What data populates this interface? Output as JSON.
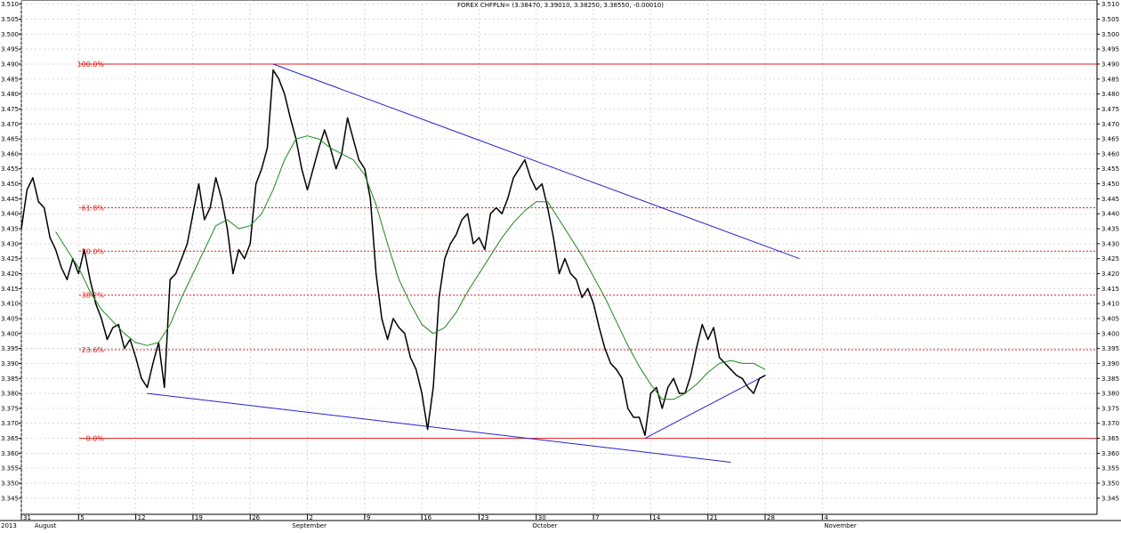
{
  "chart_data": {
    "type": "line",
    "title": "FOREX CHFPLN= (3.38470, 3.39010, 3.38250, 3.38550, -0.00010)",
    "ylim": [
      3.345,
      3.51
    ],
    "y_ticks": [
      3.345,
      3.35,
      3.355,
      3.36,
      3.365,
      3.37,
      3.375,
      3.38,
      3.385,
      3.39,
      3.395,
      3.4,
      3.405,
      3.41,
      3.415,
      3.42,
      3.425,
      3.43,
      3.435,
      3.44,
      3.445,
      3.45,
      3.455,
      3.46,
      3.465,
      3.47,
      3.475,
      3.48,
      3.485,
      3.49,
      3.495,
      3.5,
      3.505,
      3.51
    ],
    "y_tick_labels": [
      "3.345",
      "3.350",
      "3.355",
      "3.360",
      "3.365",
      "3.370",
      "3.375",
      "3.380",
      "3.385",
      "3.390",
      "3.395",
      "3.400",
      "3.405",
      "3.410",
      "3.415",
      "3.420",
      "3.425",
      "3.430",
      "3.435",
      "3.440",
      "3.445",
      "3.450",
      "3.455",
      "3.460",
      "3.465",
      "3.470",
      "3.475",
      "3.480",
      "3.485",
      "3.490",
      "3.495",
      "3.500",
      "3.505",
      "3.510"
    ],
    "xlim": [
      0,
      94
    ],
    "x_day_ticks": [
      {
        "x": 0,
        "label": "31"
      },
      {
        "x": 5,
        "label": "5"
      },
      {
        "x": 10,
        "label": "12"
      },
      {
        "x": 15,
        "label": "19"
      },
      {
        "x": 20,
        "label": "26"
      },
      {
        "x": 25,
        "label": "2"
      },
      {
        "x": 30,
        "label": "9"
      },
      {
        "x": 35,
        "label": "16"
      },
      {
        "x": 40,
        "label": "23"
      },
      {
        "x": 45,
        "label": "30"
      },
      {
        "x": 50,
        "label": "7"
      },
      {
        "x": 55,
        "label": "14"
      },
      {
        "x": 60,
        "label": "21"
      },
      {
        "x": 65,
        "label": "28"
      },
      {
        "x": 70,
        "label": "4"
      }
    ],
    "x_period_labels": [
      {
        "x": 0,
        "label": "2013"
      },
      {
        "x": 1,
        "label": "August"
      },
      {
        "x": 23.5,
        "label": "September"
      },
      {
        "x": 44.5,
        "label": "October"
      },
      {
        "x": 70,
        "label": "November"
      }
    ],
    "series": [
      {
        "key": "price",
        "color": "#000000",
        "points": [
          [
            0,
            3.435
          ],
          [
            0.5,
            3.448
          ],
          [
            1,
            3.452
          ],
          [
            1.5,
            3.444
          ],
          [
            2,
            3.442
          ],
          [
            2.5,
            3.432
          ],
          [
            3,
            3.428
          ],
          [
            3.5,
            3.422
          ],
          [
            4,
            3.418
          ],
          [
            4.5,
            3.425
          ],
          [
            5,
            3.42
          ],
          [
            5.5,
            3.428
          ],
          [
            6,
            3.418
          ],
          [
            6.5,
            3.41
          ],
          [
            7,
            3.405
          ],
          [
            7.5,
            3.398
          ],
          [
            8,
            3.402
          ],
          [
            8.5,
            3.403
          ],
          [
            9,
            3.395
          ],
          [
            9.5,
            3.398
          ],
          [
            10,
            3.392
          ],
          [
            10.5,
            3.385
          ],
          [
            11,
            3.382
          ],
          [
            11.5,
            3.39
          ],
          [
            12,
            3.397
          ],
          [
            12.5,
            3.382
          ],
          [
            13,
            3.418
          ],
          [
            13.5,
            3.42
          ],
          [
            14,
            3.425
          ],
          [
            14.5,
            3.43
          ],
          [
            15,
            3.44
          ],
          [
            15.5,
            3.45
          ],
          [
            16,
            3.438
          ],
          [
            16.5,
            3.442
          ],
          [
            17,
            3.452
          ],
          [
            17.5,
            3.445
          ],
          [
            18,
            3.435
          ],
          [
            18.5,
            3.42
          ],
          [
            19,
            3.428
          ],
          [
            19.5,
            3.425
          ],
          [
            20,
            3.43
          ],
          [
            20.5,
            3.45
          ],
          [
            21,
            3.455
          ],
          [
            21.5,
            3.462
          ],
          [
            22,
            3.488
          ],
          [
            22.5,
            3.485
          ],
          [
            23,
            3.48
          ],
          [
            23.5,
            3.472
          ],
          [
            24,
            3.465
          ],
          [
            24.5,
            3.455
          ],
          [
            25,
            3.448
          ],
          [
            25.5,
            3.455
          ],
          [
            26,
            3.462
          ],
          [
            26.5,
            3.468
          ],
          [
            27,
            3.462
          ],
          [
            27.5,
            3.455
          ],
          [
            28,
            3.46
          ],
          [
            28.5,
            3.472
          ],
          [
            29,
            3.465
          ],
          [
            29.5,
            3.458
          ],
          [
            30,
            3.455
          ],
          [
            30.5,
            3.445
          ],
          [
            31,
            3.42
          ],
          [
            31.5,
            3.405
          ],
          [
            32,
            3.398
          ],
          [
            32.5,
            3.405
          ],
          [
            33,
            3.402
          ],
          [
            33.5,
            3.4
          ],
          [
            34,
            3.392
          ],
          [
            34.5,
            3.388
          ],
          [
            35,
            3.38
          ],
          [
            35.5,
            3.368
          ],
          [
            36,
            3.382
          ],
          [
            36.5,
            3.412
          ],
          [
            37,
            3.425
          ],
          [
            37.5,
            3.43
          ],
          [
            38,
            3.433
          ],
          [
            38.5,
            3.438
          ],
          [
            39,
            3.44
          ],
          [
            39.5,
            3.43
          ],
          [
            40,
            3.432
          ],
          [
            40.5,
            3.428
          ],
          [
            41,
            3.44
          ],
          [
            41.5,
            3.442
          ],
          [
            42,
            3.44
          ],
          [
            42.5,
            3.445
          ],
          [
            43,
            3.452
          ],
          [
            43.5,
            3.455
          ],
          [
            44,
            3.458
          ],
          [
            44.5,
            3.452
          ],
          [
            45,
            3.448
          ],
          [
            45.5,
            3.45
          ],
          [
            46,
            3.442
          ],
          [
            46.5,
            3.432
          ],
          [
            47,
            3.42
          ],
          [
            47.5,
            3.425
          ],
          [
            48,
            3.42
          ],
          [
            48.5,
            3.418
          ],
          [
            49,
            3.412
          ],
          [
            49.5,
            3.415
          ],
          [
            50,
            3.41
          ],
          [
            50.5,
            3.402
          ],
          [
            51,
            3.395
          ],
          [
            51.5,
            3.39
          ],
          [
            52,
            3.388
          ],
          [
            52.5,
            3.385
          ],
          [
            53,
            3.375
          ],
          [
            53.5,
            3.372
          ],
          [
            54,
            3.372
          ],
          [
            54.5,
            3.366
          ],
          [
            55,
            3.38
          ],
          [
            55.5,
            3.382
          ],
          [
            56,
            3.375
          ],
          [
            56.5,
            3.382
          ],
          [
            57,
            3.385
          ],
          [
            57.5,
            3.38
          ],
          [
            58,
            3.38
          ],
          [
            58.5,
            3.386
          ],
          [
            59,
            3.395
          ],
          [
            59.5,
            3.403
          ],
          [
            60,
            3.398
          ],
          [
            60.5,
            3.402
          ],
          [
            61,
            3.392
          ],
          [
            61.5,
            3.39
          ],
          [
            62,
            3.388
          ],
          [
            62.5,
            3.386
          ],
          [
            63,
            3.385
          ],
          [
            63.5,
            3.382
          ],
          [
            64,
            3.38
          ],
          [
            64.5,
            3.385
          ],
          [
            65,
            3.386
          ]
        ]
      },
      {
        "key": "moving_average",
        "color": "#1a8a1a",
        "points": [
          [
            3,
            3.434
          ],
          [
            4,
            3.428
          ],
          [
            5,
            3.422
          ],
          [
            6,
            3.414
          ],
          [
            7,
            3.408
          ],
          [
            8,
            3.404
          ],
          [
            9,
            3.4
          ],
          [
            10,
            3.397
          ],
          [
            11,
            3.396
          ],
          [
            12,
            3.397
          ],
          [
            13,
            3.403
          ],
          [
            14,
            3.412
          ],
          [
            15,
            3.42
          ],
          [
            16,
            3.428
          ],
          [
            17,
            3.436
          ],
          [
            18,
            3.438
          ],
          [
            19,
            3.435
          ],
          [
            20,
            3.436
          ],
          [
            21,
            3.44
          ],
          [
            22,
            3.448
          ],
          [
            23,
            3.458
          ],
          [
            24,
            3.465
          ],
          [
            25,
            3.466
          ],
          [
            26,
            3.465
          ],
          [
            27,
            3.462
          ],
          [
            28,
            3.46
          ],
          [
            29,
            3.458
          ],
          [
            30,
            3.453
          ],
          [
            31,
            3.443
          ],
          [
            32,
            3.43
          ],
          [
            33,
            3.418
          ],
          [
            34,
            3.41
          ],
          [
            35,
            3.403
          ],
          [
            36,
            3.4
          ],
          [
            37,
            3.402
          ],
          [
            38,
            3.407
          ],
          [
            39,
            3.414
          ],
          [
            40,
            3.42
          ],
          [
            41,
            3.426
          ],
          [
            42,
            3.432
          ],
          [
            43,
            3.437
          ],
          [
            44,
            3.441
          ],
          [
            45,
            3.444
          ],
          [
            46,
            3.444
          ],
          [
            47,
            3.438
          ],
          [
            48,
            3.432
          ],
          [
            49,
            3.426
          ],
          [
            50,
            3.419
          ],
          [
            51,
            3.412
          ],
          [
            52,
            3.404
          ],
          [
            53,
            3.396
          ],
          [
            54,
            3.389
          ],
          [
            55,
            3.383
          ],
          [
            56,
            3.378
          ],
          [
            57,
            3.378
          ],
          [
            58,
            3.38
          ],
          [
            59,
            3.383
          ],
          [
            60,
            3.387
          ],
          [
            61,
            3.39
          ],
          [
            62,
            3.391
          ],
          [
            63,
            3.39
          ],
          [
            64,
            3.39
          ],
          [
            65,
            3.388
          ]
        ]
      }
    ],
    "fibonacci_levels": [
      {
        "label": "100.0%",
        "y": 3.49,
        "style": "solid"
      },
      {
        "label": "61.8%",
        "y": 3.442,
        "style": "dotted"
      },
      {
        "label": "50.0%",
        "y": 3.4275,
        "style": "dotted"
      },
      {
        "label": "38.2%",
        "y": 3.4128,
        "style": "dotted"
      },
      {
        "label": "23.6%",
        "y": 3.3946,
        "style": "dotted"
      },
      {
        "label": "0.0%",
        "y": 3.365,
        "style": "solid"
      }
    ],
    "trend_lines": [
      {
        "from": [
          22,
          3.49
        ],
        "to": [
          68,
          3.425
        ]
      },
      {
        "from": [
          11,
          3.38
        ],
        "to": [
          62,
          3.357
        ]
      },
      {
        "from": [
          54.5,
          3.365
        ],
        "to": [
          65,
          3.386
        ]
      }
    ],
    "colors": {
      "fib": "#e51a1a",
      "trend": "#2222cc",
      "grid": "#c8c8c8",
      "axis": "#000000"
    }
  }
}
